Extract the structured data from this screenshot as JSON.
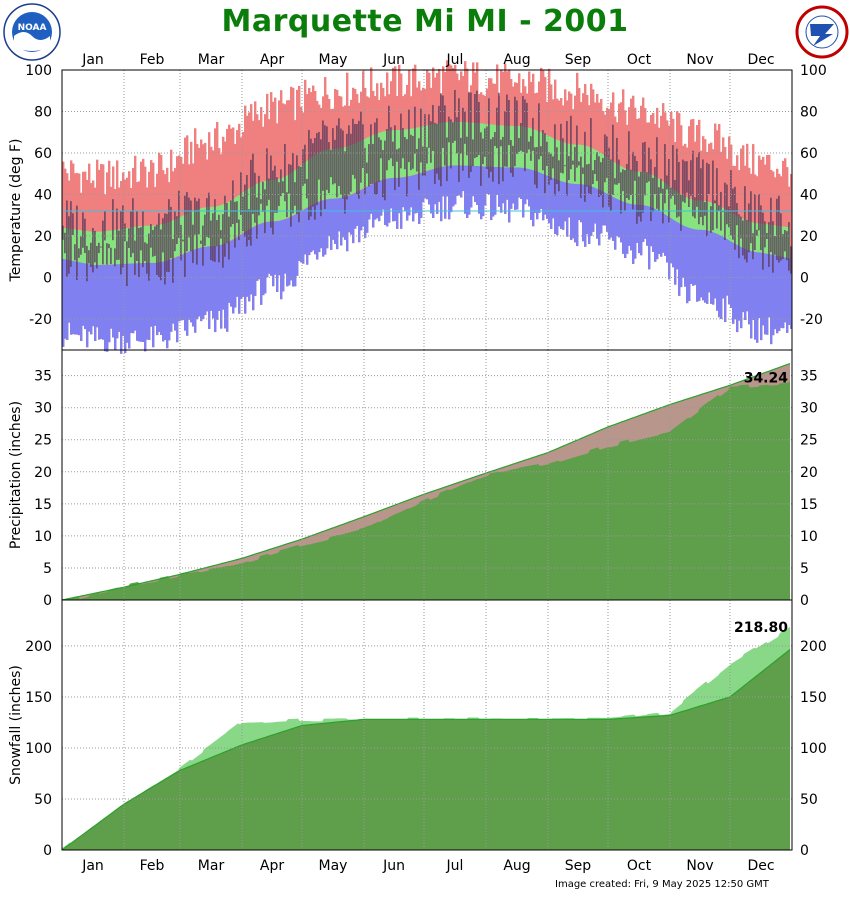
{
  "title": "Marquette Mi MI - 2001",
  "footer": "Image created: Fri, 9 May 2025 12:50 GMT",
  "logos": {
    "left": "NOAA",
    "left_ring": "NATIONAL OCEANIC AND ATMOSPHERIC ADMINISTRATION",
    "right_ring": "NATIONAL WEATHER SERVICE"
  },
  "colors": {
    "title": "#0a7d0a",
    "record_high": "#f08080",
    "normal_band": "#80e880",
    "record_low": "#8080f0",
    "actual_range": "#5a3a5a",
    "precip_normal": "#b8968c",
    "snow_observed": "#88d888",
    "cumulative": "#5f9e4a",
    "normal_line": "#2ca02c"
  },
  "chart_data": [
    {
      "type": "area",
      "ylabel": "Temperature (deg F)",
      "ylim": [
        -35,
        100
      ],
      "yticks": [
        -20,
        0,
        20,
        40,
        60,
        80,
        100
      ],
      "months": [
        "Jan",
        "Feb",
        "Mar",
        "Apr",
        "May",
        "Jun",
        "Jul",
        "Aug",
        "Sep",
        "Oct",
        "Nov",
        "Dec"
      ],
      "grid": true,
      "freezing_line": 32,
      "normal_high_monthly": [
        22,
        25,
        34,
        47,
        62,
        71,
        75,
        73,
        64,
        51,
        37,
        26
      ],
      "normal_low_monthly": [
        6,
        7,
        15,
        27,
        38,
        48,
        54,
        53,
        45,
        35,
        23,
        12
      ],
      "record_high_monthly": [
        48,
        51,
        66,
        82,
        90,
        94,
        97,
        94,
        90,
        80,
        68,
        55
      ],
      "record_low_monthly": [
        -30,
        -30,
        -22,
        -5,
        18,
        28,
        35,
        32,
        22,
        12,
        -10,
        -25
      ],
      "observed_high_monthly": [
        24,
        28,
        30,
        52,
        65,
        70,
        80,
        75,
        65,
        58,
        48,
        30
      ],
      "observed_low_monthly": [
        8,
        6,
        14,
        30,
        40,
        48,
        55,
        54,
        46,
        36,
        30,
        14
      ]
    },
    {
      "type": "area",
      "ylabel": "Precipitation (inches)",
      "ylim": [
        0,
        39
      ],
      "yticks": [
        0,
        5,
        10,
        15,
        20,
        25,
        30,
        35
      ],
      "annotation": "34.24",
      "cumulative_observed_monthly_end": [
        2.4,
        4.2,
        6.2,
        8.8,
        11.3,
        15.8,
        19.7,
        21.5,
        24.3,
        26.5,
        33.5,
        34.24
      ],
      "cumulative_normal_monthly_end": [
        2.0,
        4.0,
        6.5,
        9.5,
        13.0,
        16.5,
        19.8,
        23.0,
        27.0,
        30.5,
        33.5,
        37.0
      ]
    },
    {
      "type": "area",
      "ylabel": "Snowfall (inches)",
      "ylim": [
        0,
        245
      ],
      "yticks": [
        0,
        50,
        100,
        150,
        200
      ],
      "annotation": "218.80",
      "cumulative_observed_monthly_end": [
        45,
        80,
        125,
        128,
        128,
        128,
        128,
        128,
        128,
        135,
        182,
        218.8
      ],
      "cumulative_normal_monthly_end": [
        45,
        78,
        103,
        122,
        128,
        128,
        128,
        128,
        128,
        132,
        150,
        198
      ]
    }
  ]
}
